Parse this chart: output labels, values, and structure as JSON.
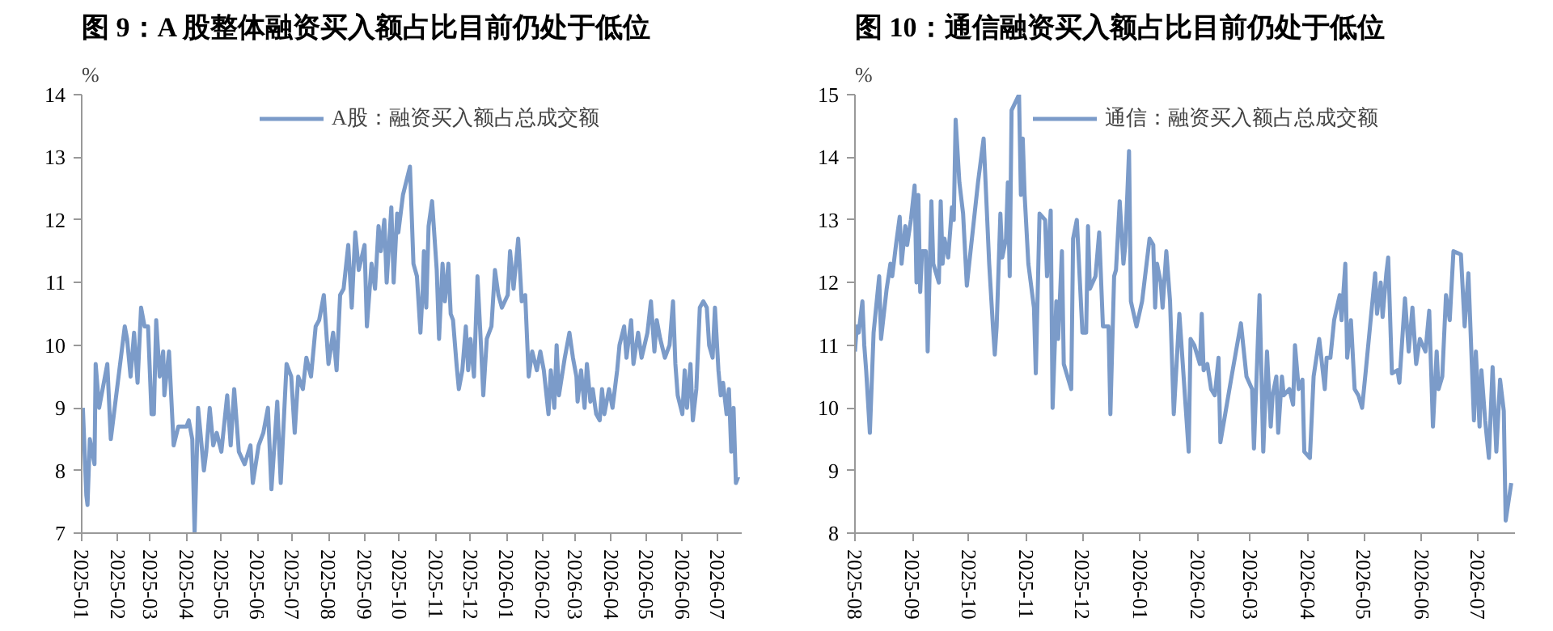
{
  "chart_data": [
    {
      "type": "line",
      "title": "图 9：A 股整体融资买入额占比目前仍处于低位",
      "ylabel": "%",
      "legend": "top",
      "grid": false,
      "line_style": "solid",
      "marker": "none",
      "x": [
        "2025-01-02",
        "2025-01-05",
        "2025-01-06",
        "2025-01-08",
        "2025-01-12",
        "2025-01-13",
        "2025-01-16",
        "2025-01-19",
        "2025-01-23",
        "2025-01-26",
        "2025-02-07",
        "2025-02-09",
        "2025-02-12",
        "2025-02-15",
        "2025-02-18",
        "2025-02-21",
        "2025-02-24",
        "2025-02-27",
        "2025-03-02",
        "2025-03-04",
        "2025-03-06",
        "2025-03-09",
        "2025-03-12",
        "2025-03-13",
        "2025-03-17",
        "2025-03-21",
        "2025-03-25",
        "2025-04-01",
        "2025-04-03",
        "2025-04-06",
        "2025-04-08",
        "2025-04-11",
        "2025-04-16",
        "2025-04-18",
        "2025-04-21",
        "2025-04-24",
        "2025-04-27",
        "2025-05-01",
        "2025-05-06",
        "2025-05-09",
        "2025-05-12",
        "2025-05-16",
        "2025-05-21",
        "2025-05-26",
        "2025-05-28",
        "2025-06-02",
        "2025-06-06",
        "2025-06-10",
        "2025-06-13",
        "2025-06-18",
        "2025-06-21",
        "2025-06-26",
        "2025-06-30",
        "2025-07-03",
        "2025-07-06",
        "2025-07-10",
        "2025-07-13",
        "2025-07-17",
        "2025-07-21",
        "2025-07-24",
        "2025-07-28",
        "2025-08-01",
        "2025-08-05",
        "2025-08-08",
        "2025-08-11",
        "2025-08-14",
        "2025-08-18",
        "2025-08-21",
        "2025-08-24",
        "2025-08-27",
        "2025-09-01",
        "2025-09-03",
        "2025-09-07",
        "2025-09-10",
        "2025-09-13",
        "2025-09-15",
        "2025-09-18",
        "2025-09-20",
        "2025-09-24",
        "2025-09-26",
        "2025-09-29",
        "2025-09-30",
        "2025-10-04",
        "2025-10-10",
        "2025-10-13",
        "2025-10-16",
        "2025-10-19",
        "2025-10-21",
        "2025-10-22",
        "2025-10-24",
        "2025-10-26",
        "2025-10-29",
        "2025-11-02",
        "2025-11-04",
        "2025-11-07",
        "2025-11-09",
        "2025-11-12",
        "2025-11-14",
        "2025-11-16",
        "2025-11-19",
        "2025-11-21",
        "2025-11-24",
        "2025-11-27",
        "2025-11-29",
        "2025-12-01",
        "2025-12-04",
        "2025-12-07",
        "2025-12-10",
        "2025-12-12",
        "2025-12-15",
        "2025-12-19",
        "2025-12-22",
        "2025-12-25",
        "2025-12-28",
        "2026-01-02",
        "2026-01-04",
        "2026-01-07",
        "2026-01-11",
        "2026-01-14",
        "2026-01-17",
        "2026-01-20",
        "2026-01-23",
        "2026-01-27",
        "2026-01-30",
        "2026-02-02",
        "2026-02-06",
        "2026-02-08",
        "2026-02-11",
        "2026-02-13",
        "2026-02-15",
        "2026-02-20",
        "2026-02-24",
        "2026-02-27",
        "2026-03-02",
        "2026-03-03",
        "2026-03-06",
        "2026-03-09",
        "2026-03-11",
        "2026-03-14",
        "2026-03-16",
        "2026-03-19",
        "2026-03-22",
        "2026-03-24",
        "2026-03-26",
        "2026-03-30",
        "2026-04-02",
        "2026-04-06",
        "2026-04-08",
        "2026-04-12",
        "2026-04-14",
        "2026-04-18",
        "2026-04-20",
        "2026-04-24",
        "2026-04-27",
        "2026-05-02",
        "2026-05-05",
        "2026-05-08",
        "2026-05-10",
        "2026-05-13",
        "2026-05-17",
        "2026-05-21",
        "2026-05-24",
        "2026-05-26",
        "2026-05-28",
        "2026-06-01",
        "2026-06-03",
        "2026-06-05",
        "2026-06-08",
        "2026-06-10",
        "2026-06-13",
        "2026-06-16",
        "2026-06-19",
        "2026-06-22",
        "2026-06-24",
        "2026-06-27",
        "2026-06-29",
        "2026-07-02",
        "2026-07-04",
        "2026-07-06",
        "2026-07-09",
        "2026-07-11",
        "2026-07-13",
        "2026-07-15",
        "2026-07-17",
        "2026-07-19"
      ],
      "series": [
        {
          "name": "A股：融资买入额占总成交额",
          "color": "#7b9bc9",
          "values": [
            9.0,
            7.6,
            7.45,
            8.5,
            8.1,
            9.7,
            9.0,
            9.3,
            9.7,
            8.5,
            10.3,
            10.1,
            9.5,
            10.2,
            9.4,
            10.6,
            10.3,
            10.3,
            8.9,
            8.9,
            10.4,
            9.5,
            9.9,
            9.2,
            9.9,
            8.4,
            8.7,
            8.7,
            8.8,
            8.5,
            7.0,
            9.0,
            8.0,
            8.3,
            9.0,
            8.4,
            8.6,
            8.3,
            9.2,
            8.4,
            9.3,
            8.3,
            8.1,
            8.4,
            7.8,
            8.4,
            8.6,
            9.0,
            7.7,
            9.1,
            7.8,
            9.7,
            9.5,
            8.6,
            9.5,
            9.3,
            9.8,
            9.5,
            10.3,
            10.4,
            10.8,
            9.7,
            10.2,
            9.6,
            10.8,
            10.9,
            11.6,
            10.6,
            11.8,
            11.2,
            11.6,
            10.3,
            11.3,
            10.9,
            11.9,
            11.5,
            12.0,
            11.0,
            12.2,
            11.0,
            12.1,
            11.8,
            12.4,
            12.85,
            11.3,
            11.1,
            10.2,
            10.9,
            11.5,
            10.6,
            11.9,
            12.3,
            11.2,
            10.1,
            11.3,
            10.7,
            11.3,
            10.5,
            10.4,
            9.7,
            9.3,
            9.6,
            10.3,
            9.6,
            10.1,
            9.5,
            11.1,
            10.0,
            9.2,
            10.1,
            10.3,
            11.2,
            10.8,
            10.6,
            10.8,
            11.5,
            10.9,
            11.7,
            10.7,
            10.8,
            9.5,
            9.9,
            9.6,
            9.9,
            9.6,
            8.9,
            9.6,
            9.0,
            10.0,
            9.2,
            9.8,
            10.2,
            9.8,
            9.5,
            9.1,
            9.6,
            9.0,
            9.7,
            9.1,
            9.3,
            8.9,
            8.8,
            9.3,
            8.9,
            9.3,
            9.0,
            9.6,
            10.0,
            10.3,
            9.8,
            10.4,
            9.7,
            10.2,
            9.8,
            10.2,
            10.7,
            9.9,
            10.4,
            10.1,
            9.8,
            10.0,
            10.7,
            9.7,
            9.2,
            8.9,
            9.6,
            9.0,
            9.7,
            8.8,
            9.3,
            10.6,
            10.7,
            10.6,
            10.0,
            9.8,
            10.6,
            9.6,
            9.2,
            9.4,
            8.9,
            9.3,
            8.3,
            9.0,
            7.8,
            7.9
          ]
        }
      ],
      "xlim": [
        "2025-01-01",
        "2026-07-22"
      ],
      "xticks": [
        "2025-01",
        "2025-02",
        "2025-03",
        "2025-04",
        "2025-05",
        "2025-06",
        "2025-07",
        "2025-08",
        "2025-09",
        "2025-10",
        "2025-11",
        "2025-12",
        "2026-01",
        "2026-02",
        "2026-03",
        "2026-04",
        "2026-05",
        "2026-06",
        "2026-07"
      ],
      "ylim": [
        7,
        14
      ],
      "yticks": [
        7,
        8,
        9,
        10,
        11,
        12,
        13,
        14
      ]
    },
    {
      "type": "line",
      "title": "图 10：通信融资买入额占比目前仍处于低位",
      "ylabel": "%",
      "legend": "top",
      "grid": false,
      "line_style": "solid",
      "marker": "none",
      "x": [
        "2025-08-01",
        "2025-08-02",
        "2025-08-03",
        "2025-08-05",
        "2025-08-06",
        "2025-08-07",
        "2025-08-09",
        "2025-08-11",
        "2025-08-14",
        "2025-08-15",
        "2025-08-18",
        "2025-08-20",
        "2025-08-21",
        "2025-08-23",
        "2025-08-25",
        "2025-08-26",
        "2025-08-28",
        "2025-08-29",
        "2025-08-31",
        "2025-09-02",
        "2025-09-03",
        "2025-09-04",
        "2025-09-05",
        "2025-09-06",
        "2025-09-08",
        "2025-09-09",
        "2025-09-11",
        "2025-09-12",
        "2025-09-15",
        "2025-09-16",
        "2025-09-17",
        "2025-09-18",
        "2025-09-20",
        "2025-09-22",
        "2025-09-23",
        "2025-09-24",
        "2025-09-26",
        "2025-09-28",
        "2025-09-30",
        "2025-10-02",
        "2025-10-06",
        "2025-10-09",
        "2025-10-12",
        "2025-10-14",
        "2025-10-15",
        "2025-10-16",
        "2025-10-18",
        "2025-10-19",
        "2025-10-21",
        "2025-10-22",
        "2025-10-23",
        "2025-10-24",
        "2025-10-28",
        "2025-10-29",
        "2025-10-30",
        "2025-10-31",
        "2025-11-02",
        "2025-11-05",
        "2025-11-06",
        "2025-11-08",
        "2025-11-11",
        "2025-11-12",
        "2025-11-14",
        "2025-11-15",
        "2025-11-17",
        "2025-11-18",
        "2025-11-20",
        "2025-11-21",
        "2025-11-25",
        "2025-11-26",
        "2025-11-28",
        "2025-12-01",
        "2025-12-03",
        "2025-12-04",
        "2025-12-05",
        "2025-12-08",
        "2025-12-10",
        "2025-12-12",
        "2025-12-15",
        "2025-12-16",
        "2025-12-18",
        "2025-12-19",
        "2025-12-21",
        "2025-12-23",
        "2025-12-24",
        "2025-12-26",
        "2025-12-27",
        "2025-12-30",
        "2026-01-02",
        "2026-01-06",
        "2026-01-08",
        "2026-01-09",
        "2026-01-10",
        "2026-01-12",
        "2026-01-13",
        "2026-01-15",
        "2026-01-17",
        "2026-01-19",
        "2026-01-22",
        "2026-01-27",
        "2026-01-28",
        "2026-01-30",
        "2026-02-02",
        "2026-02-03",
        "2026-02-04",
        "2026-02-06",
        "2026-02-08",
        "2026-02-10",
        "2026-02-12",
        "2026-02-13",
        "2026-02-19",
        "2026-02-24",
        "2026-02-27",
        "2026-03-02",
        "2026-03-03",
        "2026-03-06",
        "2026-03-08",
        "2026-03-10",
        "2026-03-12",
        "2026-03-13",
        "2026-03-15",
        "2026-03-16",
        "2026-03-18",
        "2026-03-19",
        "2026-03-22",
        "2026-03-24",
        "2026-03-25",
        "2026-03-27",
        "2026-03-29",
        "2026-03-30",
        "2026-04-02",
        "2026-04-04",
        "2026-04-07",
        "2026-04-10",
        "2026-04-11",
        "2026-04-13",
        "2026-04-15",
        "2026-04-18",
        "2026-04-19",
        "2026-04-21",
        "2026-04-22",
        "2026-04-24",
        "2026-04-26",
        "2026-04-28",
        "2026-04-30",
        "2026-05-02",
        "2026-05-07",
        "2026-05-08",
        "2026-05-10",
        "2026-05-11",
        "2026-05-13",
        "2026-05-14",
        "2026-05-16",
        "2026-05-19",
        "2026-05-20",
        "2026-05-23",
        "2026-05-25",
        "2026-05-27",
        "2026-05-29",
        "2026-05-31",
        "2026-06-03",
        "2026-06-05",
        "2026-06-07",
        "2026-06-09",
        "2026-06-10",
        "2026-06-12",
        "2026-06-14",
        "2026-06-16",
        "2026-06-18",
        "2026-06-22",
        "2026-06-24",
        "2026-06-26",
        "2026-06-29",
        "2026-06-30",
        "2026-07-02",
        "2026-07-03",
        "2026-07-05",
        "2026-07-07",
        "2026-07-09",
        "2026-07-11",
        "2026-07-13",
        "2026-07-15",
        "2026-07-16",
        "2026-07-19"
      ],
      "series": [
        {
          "name": "通信：融资买入额占总成交额",
          "color": "#7b9bc9",
          "values": [
            10.9,
            11.3,
            11.2,
            11.7,
            11.0,
            10.6,
            9.6,
            11.2,
            12.1,
            11.1,
            11.9,
            12.3,
            12.1,
            12.6,
            13.05,
            12.3,
            12.9,
            12.6,
            13.0,
            13.55,
            12.0,
            13.4,
            11.85,
            12.5,
            12.5,
            10.9,
            13.3,
            12.3,
            12.0,
            13.3,
            12.3,
            12.7,
            12.4,
            13.2,
            13.0,
            14.6,
            13.6,
            13.1,
            11.95,
            12.5,
            13.6,
            14.3,
            12.3,
            11.3,
            10.85,
            11.3,
            13.1,
            12.4,
            12.7,
            13.6,
            12.1,
            14.75,
            15.0,
            13.4,
            14.3,
            13.4,
            12.3,
            11.6,
            10.55,
            13.1,
            13.0,
            12.1,
            13.15,
            10.0,
            11.7,
            11.1,
            12.5,
            10.7,
            10.3,
            12.7,
            13.0,
            11.2,
            11.2,
            12.9,
            11.9,
            12.1,
            12.8,
            11.3,
            11.3,
            9.9,
            12.1,
            12.2,
            13.3,
            12.3,
            12.6,
            14.1,
            11.7,
            11.3,
            11.7,
            12.7,
            12.6,
            11.6,
            12.3,
            12.0,
            11.6,
            12.5,
            11.7,
            9.9,
            11.5,
            9.3,
            11.1,
            11.0,
            10.7,
            11.5,
            10.6,
            10.7,
            10.3,
            10.2,
            10.8,
            9.45,
            10.5,
            11.35,
            10.5,
            10.3,
            9.35,
            11.8,
            9.3,
            10.9,
            9.7,
            10.2,
            10.5,
            9.6,
            10.5,
            10.2,
            10.3,
            10.05,
            11.0,
            10.3,
            10.45,
            9.3,
            9.2,
            10.5,
            11.1,
            10.3,
            10.8,
            10.8,
            11.4,
            11.8,
            11.4,
            12.3,
            10.8,
            11.4,
            10.3,
            10.2,
            10.0,
            10.6,
            12.15,
            11.5,
            12.0,
            11.45,
            12.15,
            12.4,
            10.55,
            10.6,
            10.4,
            11.75,
            10.9,
            11.6,
            10.7,
            11.1,
            10.9,
            11.55,
            9.7,
            10.9,
            10.3,
            10.5,
            11.8,
            11.4,
            12.5,
            12.45,
            11.3,
            12.15,
            9.8,
            10.9,
            9.7,
            10.6,
            9.8,
            9.2,
            10.65,
            9.3,
            10.45,
            9.95,
            8.2,
            8.8
          ]
        }
      ],
      "xlim": [
        "2025-08-01",
        "2026-07-21"
      ],
      "xticks": [
        "2025-08",
        "2025-09",
        "2025-10",
        "2025-11",
        "2025-12",
        "2026-01",
        "2026-02",
        "2026-03",
        "2026-04",
        "2026-05",
        "2026-06",
        "2026-07"
      ],
      "ylim": [
        8,
        15
      ],
      "yticks": [
        8,
        9,
        10,
        11,
        12,
        13,
        14,
        15
      ]
    }
  ]
}
